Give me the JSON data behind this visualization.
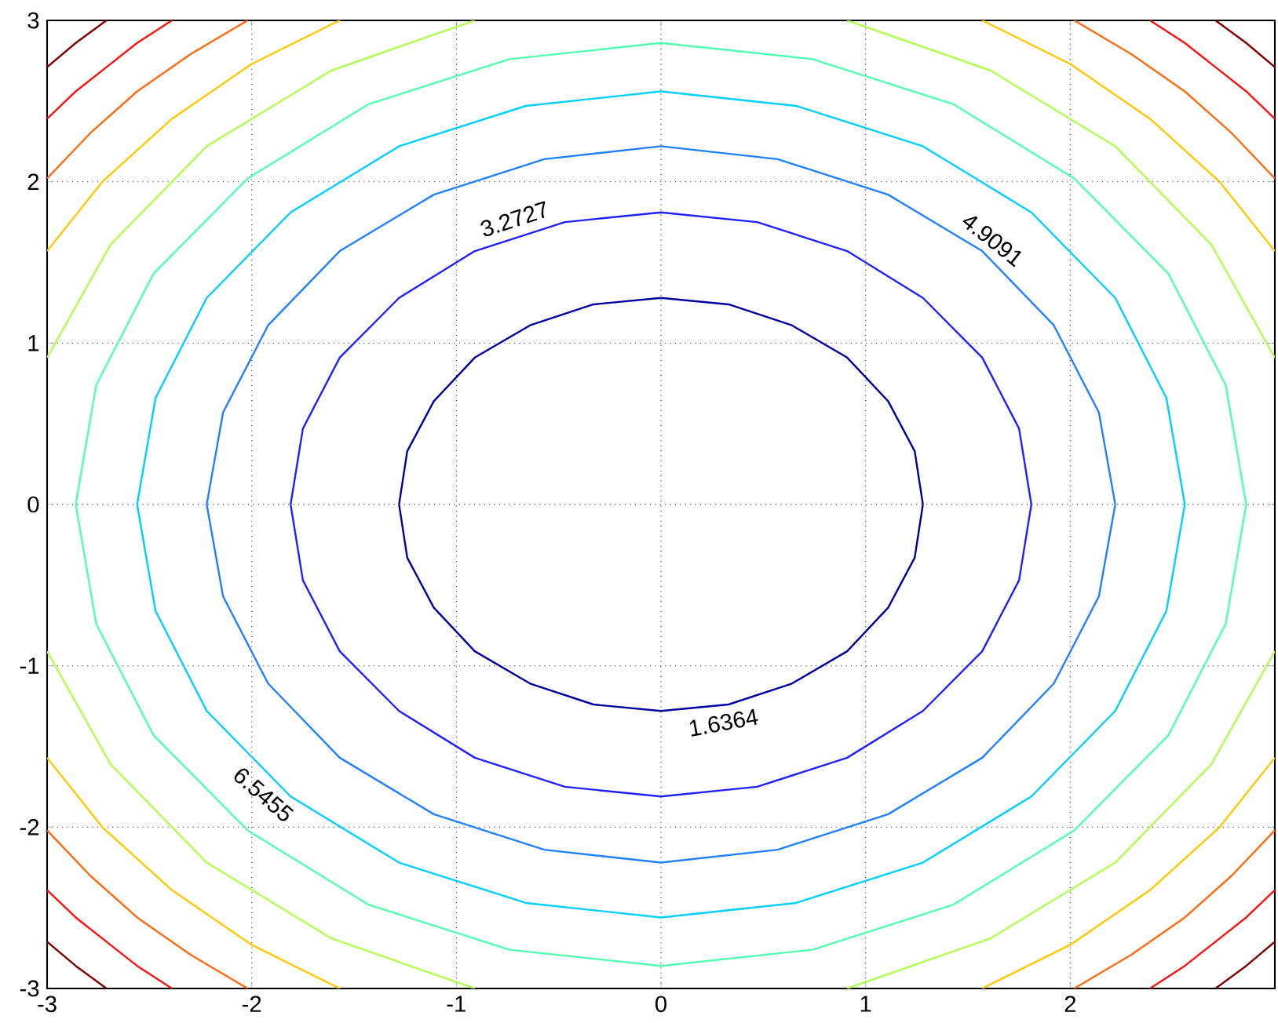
{
  "chart_data": {
    "type": "line",
    "xlim": [
      -3,
      3
    ],
    "ylim": [
      -3,
      3
    ],
    "xticks": [
      -3,
      -2,
      -1,
      0,
      1,
      2
    ],
    "yticks": [
      -3,
      -2,
      -1,
      0,
      1,
      2,
      3
    ],
    "grid": true,
    "series": [
      {
        "color": "#0000a0",
        "x": [
          1.28,
          1.24,
          1.11,
          0.91,
          0.64,
          0.33,
          0,
          -0.33,
          -0.64,
          -0.91,
          -1.11,
          -1.24,
          -1.28,
          null,
          -1.28,
          -1.24,
          -1.11,
          -0.91,
          -0.64,
          -0.33,
          0,
          0.33,
          0.64,
          0.91,
          1.11,
          1.24,
          1.28
        ],
        "values": [
          0,
          0.33,
          0.64,
          0.91,
          1.11,
          1.24,
          1.28,
          1.24,
          1.11,
          0.91,
          0.64,
          0.33,
          0,
          null,
          0,
          -0.33,
          -0.64,
          -0.91,
          -1.11,
          -1.24,
          -1.28,
          -1.24,
          -1.11,
          -0.91,
          -0.64,
          -0.33,
          0
        ]
      },
      {
        "color": "#2020ff",
        "x": [
          1.81,
          1.75,
          1.57,
          1.28,
          0.91,
          0.47,
          0,
          -0.47,
          -0.91,
          -1.28,
          -1.57,
          -1.75,
          -1.81,
          null,
          -1.81,
          -1.75,
          -1.57,
          -1.28,
          -0.91,
          -0.47,
          0,
          0.47,
          0.91,
          1.28,
          1.57,
          1.75,
          1.81
        ],
        "values": [
          0,
          0.47,
          0.91,
          1.28,
          1.57,
          1.75,
          1.81,
          1.75,
          1.57,
          1.28,
          0.91,
          0.47,
          0,
          null,
          0,
          -0.47,
          -0.91,
          -1.28,
          -1.57,
          -1.75,
          -1.81,
          -1.75,
          -1.57,
          -1.28,
          -0.91,
          -0.47,
          0
        ]
      },
      {
        "color": "#2080ff",
        "x": [
          2.22,
          2.14,
          1.92,
          1.57,
          1.11,
          0.57,
          0,
          -0.57,
          -1.11,
          -1.57,
          -1.92,
          -2.14,
          -2.22,
          null,
          -2.22,
          -2.14,
          -1.92,
          -1.57,
          -1.11,
          -0.57,
          0,
          0.57,
          1.11,
          1.57,
          1.92,
          2.14,
          2.22
        ],
        "values": [
          0,
          0.57,
          1.11,
          1.57,
          1.92,
          2.14,
          2.22,
          2.14,
          1.92,
          1.57,
          1.11,
          0.57,
          0,
          null,
          0,
          -0.57,
          -1.11,
          -1.57,
          -1.92,
          -2.14,
          -2.22,
          -2.14,
          -1.92,
          -1.57,
          -1.11,
          -0.57,
          0
        ]
      },
      {
        "color": "#00d0ff",
        "x": [
          2.56,
          2.47,
          2.22,
          1.81,
          1.28,
          0.66,
          0,
          -0.66,
          -1.28,
          -1.81,
          -2.22,
          -2.47,
          -2.56,
          null,
          -2.56,
          -2.47,
          -2.22,
          -1.81,
          -1.28,
          -0.66,
          0,
          0.66,
          1.28,
          1.81,
          2.22,
          2.47,
          2.56
        ],
        "values": [
          0,
          0.66,
          1.28,
          1.81,
          2.22,
          2.47,
          2.56,
          2.47,
          2.22,
          1.81,
          1.28,
          0.66,
          0,
          null,
          0,
          -0.66,
          -1.28,
          -1.81,
          -2.22,
          -2.47,
          -2.56,
          -2.47,
          -2.22,
          -1.81,
          -1.28,
          -0.66,
          0
        ]
      },
      {
        "color": "#50ffb0",
        "x": [
          2.86,
          2.76,
          2.48,
          2.02,
          1.43,
          0.74,
          0,
          -0.74,
          -1.43,
          -2.02,
          -2.48,
          -2.76,
          -2.86,
          null,
          -2.86,
          -2.76,
          -2.48,
          -2.02,
          -1.43,
          -0.74,
          0,
          0.74,
          1.43,
          2.02,
          2.48,
          2.76,
          2.86
        ],
        "values": [
          0,
          0.74,
          1.43,
          2.02,
          2.48,
          2.76,
          2.86,
          2.76,
          2.48,
          2.02,
          1.43,
          0.74,
          0,
          null,
          0,
          -0.74,
          -1.43,
          -2.02,
          -2.48,
          -2.76,
          -2.86,
          -2.76,
          -2.48,
          -2.02,
          -1.43,
          -0.74,
          0
        ]
      },
      {
        "color": "#b0ff50",
        "x": [
          3,
          2.69,
          2.22,
          1.61,
          0.91,
          null,
          -3,
          -2.69,
          -2.22,
          -1.61,
          -0.91,
          null,
          -3,
          -2.69,
          -2.22,
          -1.61,
          -0.91,
          null,
          3,
          2.69,
          2.22,
          1.61,
          0.91
        ],
        "values": [
          0.91,
          1.61,
          2.22,
          2.69,
          3,
          null,
          0.91,
          1.61,
          2.22,
          2.69,
          3,
          null,
          -0.91,
          -1.61,
          -2.22,
          -2.69,
          -3,
          null,
          -0.91,
          -1.61,
          -2.22,
          -2.69,
          -3
        ]
      },
      {
        "color": "#ffc800",
        "x": [
          3,
          2.73,
          2.39,
          2.0,
          1.57,
          null,
          -3,
          -2.73,
          -2.39,
          -2.0,
          -1.57,
          null,
          -3,
          -2.73,
          -2.39,
          -2.0,
          -1.57,
          null,
          3,
          2.73,
          2.39,
          2.0,
          1.57
        ],
        "values": [
          1.57,
          2.0,
          2.39,
          2.73,
          3,
          null,
          1.57,
          2.0,
          2.39,
          2.73,
          3,
          null,
          -1.57,
          -2.0,
          -2.39,
          -2.73,
          -3,
          null,
          -1.57,
          -2.0,
          -2.39,
          -2.73,
          -3
        ]
      },
      {
        "color": "#ff6a10",
        "x": [
          3,
          2.79,
          2.56,
          2.3,
          2.02,
          null,
          -3,
          -2.79,
          -2.56,
          -2.3,
          -2.02,
          null,
          -3,
          -2.79,
          -2.56,
          -2.3,
          -2.02,
          null,
          3,
          2.79,
          2.56,
          2.3,
          2.02
        ],
        "values": [
          2.02,
          2.3,
          2.56,
          2.79,
          3,
          null,
          2.02,
          2.3,
          2.56,
          2.79,
          3,
          null,
          -2.02,
          -2.3,
          -2.56,
          -2.79,
          -3,
          null,
          -2.02,
          -2.3,
          -2.56,
          -2.79,
          -3
        ]
      },
      {
        "color": "#ff1010",
        "x": [
          3,
          2.86,
          2.71,
          2.56,
          2.39,
          null,
          -3,
          -2.86,
          -2.71,
          -2.56,
          -2.39,
          null,
          -3,
          -2.86,
          -2.71,
          -2.56,
          -2.39,
          null,
          3,
          2.86,
          2.71,
          2.56,
          2.39
        ],
        "values": [
          2.39,
          2.56,
          2.71,
          2.86,
          3,
          null,
          2.39,
          2.56,
          2.71,
          2.86,
          3,
          null,
          -2.39,
          -2.56,
          -2.71,
          -2.86,
          -3,
          null,
          -2.39,
          -2.56,
          -2.71,
          -2.86,
          -3
        ]
      },
      {
        "color": "#800000",
        "x": [
          3,
          2.86,
          2.71,
          null,
          -3,
          -2.86,
          -2.71,
          null,
          -3,
          -2.86,
          -2.71,
          null,
          3,
          2.86,
          2.71
        ],
        "values": [
          2.71,
          2.86,
          3,
          null,
          2.71,
          2.86,
          3,
          null,
          -2.71,
          -2.86,
          -3,
          null,
          -2.71,
          -2.86,
          -3
        ]
      }
    ],
    "annotations": [
      {
        "text": "1.6364",
        "x": 0.29,
        "y": -1.25
      },
      {
        "text": "3.2727",
        "x": -0.69,
        "y": 1.67
      },
      {
        "text": "4.9091",
        "x": 1.57,
        "y": 1.56
      },
      {
        "text": "6.5455",
        "x": -1.89,
        "y": -1.72
      }
    ]
  }
}
